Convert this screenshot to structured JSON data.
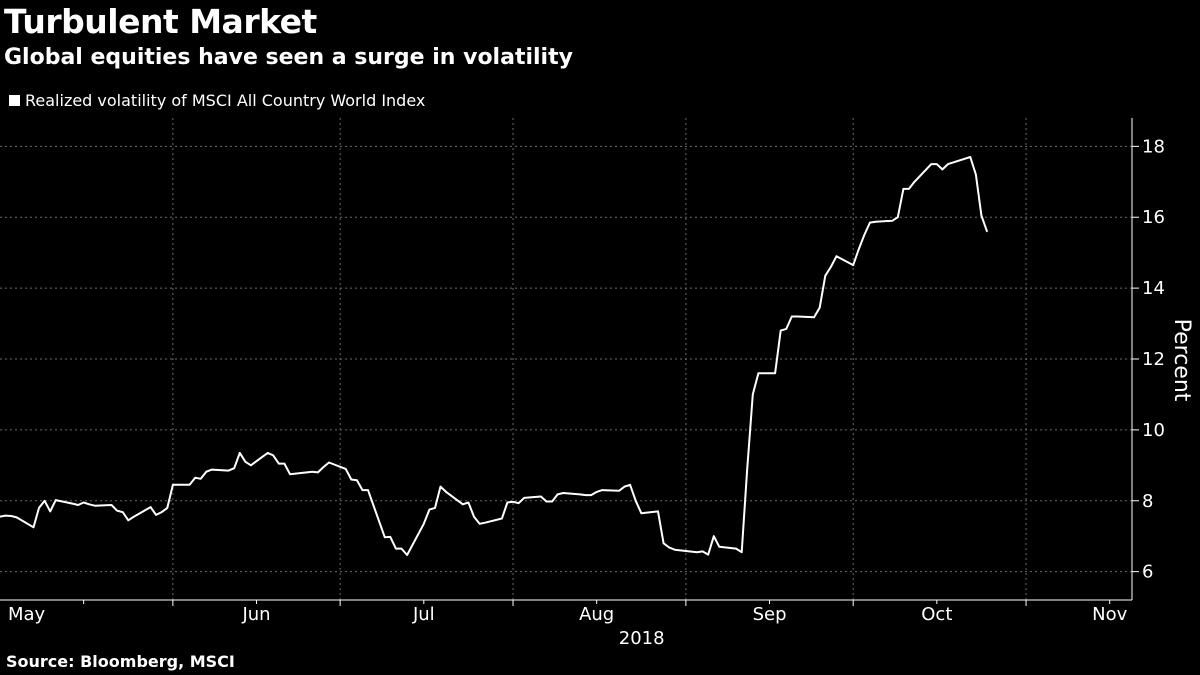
{
  "title": "Turbulent Market",
  "subtitle": "Global equities have seen a surge in volatility",
  "source": "Source: Bloomberg, MSCI",
  "colors": {
    "background": "#000000",
    "line": "#ffffff",
    "grid": "#6b6b6b"
  },
  "chart_data": {
    "type": "line",
    "legend": "Realized volatility of MSCI All Country World Index",
    "legend_position": "top-left",
    "ylabel": "Percent",
    "ylim": [
      5.2,
      18.8
    ],
    "yticks": [
      6,
      8,
      10,
      12,
      14,
      16,
      18
    ],
    "grid": true,
    "y_axis_side": "right",
    "year_label": "2018",
    "months": [
      "May",
      "Jun",
      "Jul",
      "Aug",
      "Sep",
      "Oct",
      "Nov"
    ],
    "x_start": "2018-05-01",
    "x_end": "2018-11-20",
    "series": [
      {
        "name": "Realized volatility of MSCI All Country World Index",
        "points": [
          [
            "2018-05-01",
            7.55
          ],
          [
            "2018-05-02",
            7.58
          ],
          [
            "2018-05-03",
            7.57
          ],
          [
            "2018-05-04",
            7.53
          ],
          [
            "2018-05-07",
            7.25
          ],
          [
            "2018-05-08",
            7.8
          ],
          [
            "2018-05-09",
            8.0
          ],
          [
            "2018-05-10",
            7.7
          ],
          [
            "2018-05-11",
            8.02
          ],
          [
            "2018-05-14",
            7.92
          ],
          [
            "2018-05-15",
            7.88
          ],
          [
            "2018-05-16",
            7.95
          ],
          [
            "2018-05-17",
            7.9
          ],
          [
            "2018-05-18",
            7.86
          ],
          [
            "2018-05-21",
            7.88
          ],
          [
            "2018-05-22",
            7.72
          ],
          [
            "2018-05-23",
            7.68
          ],
          [
            "2018-05-24",
            7.45
          ],
          [
            "2018-05-25",
            7.55
          ],
          [
            "2018-05-28",
            7.82
          ],
          [
            "2018-05-29",
            7.6
          ],
          [
            "2018-05-30",
            7.68
          ],
          [
            "2018-05-31",
            7.8
          ],
          [
            "2018-06-01",
            8.45
          ],
          [
            "2018-06-04",
            8.45
          ],
          [
            "2018-06-05",
            8.65
          ],
          [
            "2018-06-06",
            8.62
          ],
          [
            "2018-06-07",
            8.82
          ],
          [
            "2018-06-08",
            8.88
          ],
          [
            "2018-06-11",
            8.85
          ],
          [
            "2018-06-12",
            8.92
          ],
          [
            "2018-06-13",
            9.35
          ],
          [
            "2018-06-14",
            9.1
          ],
          [
            "2018-06-15",
            9.0
          ],
          [
            "2018-06-18",
            9.35
          ],
          [
            "2018-06-19",
            9.28
          ],
          [
            "2018-06-20",
            9.05
          ],
          [
            "2018-06-21",
            9.05
          ],
          [
            "2018-06-22",
            8.75
          ],
          [
            "2018-06-25",
            8.8
          ],
          [
            "2018-06-26",
            8.82
          ],
          [
            "2018-06-27",
            8.8
          ],
          [
            "2018-06-28",
            8.95
          ],
          [
            "2018-06-29",
            9.08
          ],
          [
            "2018-07-02",
            8.9
          ],
          [
            "2018-07-03",
            8.6
          ],
          [
            "2018-07-04",
            8.58
          ],
          [
            "2018-07-05",
            8.3
          ],
          [
            "2018-07-06",
            8.3
          ],
          [
            "2018-07-09",
            6.97
          ],
          [
            "2018-07-10",
            6.98
          ],
          [
            "2018-07-11",
            6.65
          ],
          [
            "2018-07-12",
            6.65
          ],
          [
            "2018-07-13",
            6.47
          ],
          [
            "2018-07-16",
            7.35
          ],
          [
            "2018-07-17",
            7.75
          ],
          [
            "2018-07-18",
            7.8
          ],
          [
            "2018-07-19",
            8.4
          ],
          [
            "2018-07-20",
            8.25
          ],
          [
            "2018-07-23",
            7.9
          ],
          [
            "2018-07-24",
            7.95
          ],
          [
            "2018-07-25",
            7.55
          ],
          [
            "2018-07-26",
            7.35
          ],
          [
            "2018-07-27",
            7.38
          ],
          [
            "2018-07-30",
            7.5
          ],
          [
            "2018-07-31",
            7.95
          ],
          [
            "2018-08-01",
            7.97
          ],
          [
            "2018-08-02",
            7.93
          ],
          [
            "2018-08-03",
            8.08
          ],
          [
            "2018-08-06",
            8.12
          ],
          [
            "2018-08-07",
            7.98
          ],
          [
            "2018-08-08",
            7.98
          ],
          [
            "2018-08-09",
            8.18
          ],
          [
            "2018-08-10",
            8.22
          ],
          [
            "2018-08-13",
            8.18
          ],
          [
            "2018-08-14",
            8.16
          ],
          [
            "2018-08-15",
            8.16
          ],
          [
            "2018-08-16",
            8.25
          ],
          [
            "2018-08-17",
            8.3
          ],
          [
            "2018-08-20",
            8.28
          ],
          [
            "2018-08-21",
            8.4
          ],
          [
            "2018-08-22",
            8.45
          ],
          [
            "2018-08-23",
            8.0
          ],
          [
            "2018-08-24",
            7.65
          ],
          [
            "2018-08-27",
            7.7
          ],
          [
            "2018-08-28",
            6.8
          ],
          [
            "2018-08-29",
            6.68
          ],
          [
            "2018-08-30",
            6.62
          ],
          [
            "2018-08-31",
            6.6
          ],
          [
            "2018-09-03",
            6.55
          ],
          [
            "2018-09-04",
            6.57
          ],
          [
            "2018-09-05",
            6.48
          ],
          [
            "2018-09-06",
            7.0
          ],
          [
            "2018-09-07",
            6.7
          ],
          [
            "2018-09-10",
            6.65
          ],
          [
            "2018-09-11",
            6.55
          ],
          [
            "2018-09-12",
            8.9
          ],
          [
            "2018-09-13",
            11.0
          ],
          [
            "2018-09-14",
            11.6
          ],
          [
            "2018-09-17",
            11.6
          ],
          [
            "2018-09-18",
            12.8
          ],
          [
            "2018-09-19",
            12.85
          ],
          [
            "2018-09-20",
            13.2
          ],
          [
            "2018-09-21",
            13.2
          ],
          [
            "2018-09-24",
            13.18
          ],
          [
            "2018-09-25",
            13.45
          ],
          [
            "2018-09-26",
            14.35
          ],
          [
            "2018-09-27",
            14.6
          ],
          [
            "2018-09-28",
            14.9
          ],
          [
            "2018-10-01",
            14.65
          ],
          [
            "2018-10-02",
            15.1
          ],
          [
            "2018-10-03",
            15.5
          ],
          [
            "2018-10-04",
            15.85
          ],
          [
            "2018-10-05",
            15.87
          ],
          [
            "2018-10-08",
            15.9
          ],
          [
            "2018-10-09",
            16.0
          ],
          [
            "2018-10-10",
            16.8
          ],
          [
            "2018-10-11",
            16.8
          ],
          [
            "2018-10-12",
            17.0
          ],
          [
            "2018-10-15",
            17.5
          ],
          [
            "2018-10-16",
            17.5
          ],
          [
            "2018-10-17",
            17.35
          ],
          [
            "2018-10-18",
            17.5
          ],
          [
            "2018-10-19",
            17.55
          ],
          [
            "2018-10-22",
            17.7
          ],
          [
            "2018-10-23",
            17.2
          ],
          [
            "2018-10-24",
            16.05
          ],
          [
            "2018-10-25",
            15.6
          ]
        ]
      }
    ]
  }
}
